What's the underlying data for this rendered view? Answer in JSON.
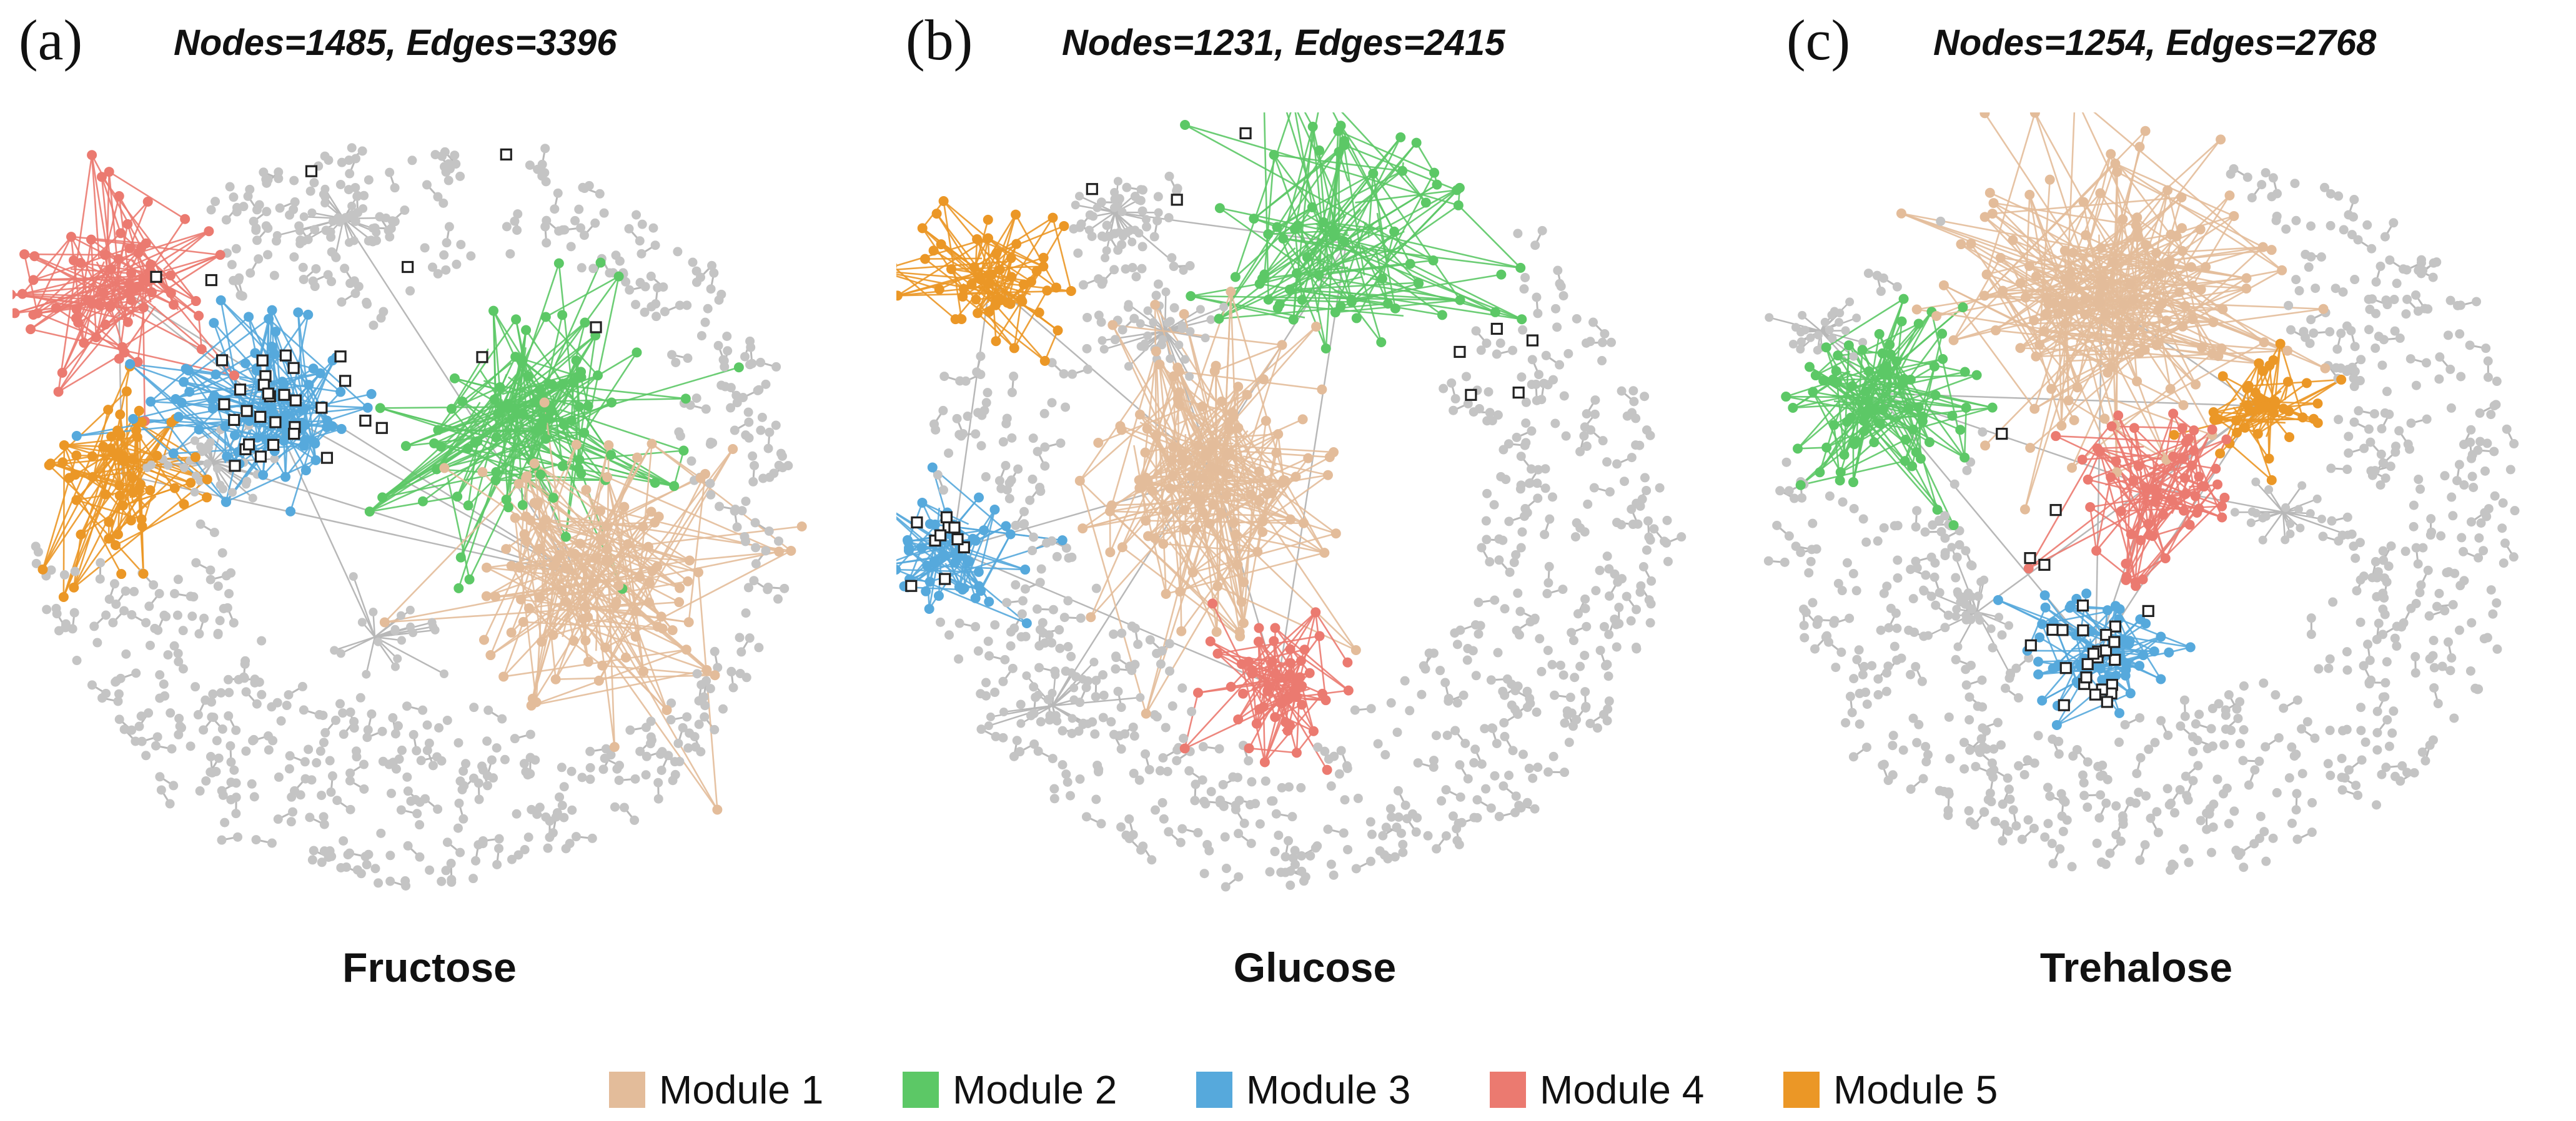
{
  "panels": [
    {
      "letter": "(a)",
      "stats": "Nodes=1485, Edges=3396",
      "title": "Fructose",
      "modules": [
        1,
        2,
        3,
        4,
        5
      ],
      "markers": 40
    },
    {
      "letter": "(b)",
      "stats": "Nodes=1231, Edges=2415",
      "title": "Glucose",
      "modules": [
        1,
        2,
        3,
        4,
        5
      ],
      "markers": 22
    },
    {
      "letter": "(c)",
      "stats": "Nodes=1254, Edges=2768",
      "title": "Trehalose",
      "modules": [
        1,
        2,
        3,
        4,
        5
      ],
      "markers": 28
    }
  ],
  "legend": [
    {
      "label": "Module 1",
      "color": "#e3bc9a"
    },
    {
      "label": "Module 2",
      "color": "#5cc866"
    },
    {
      "label": "Module 3",
      "color": "#56a9dc"
    },
    {
      "label": "Module 4",
      "color": "#eb7a70"
    },
    {
      "label": "Module 5",
      "color": "#eb9726"
    }
  ],
  "colors": {
    "background_node": "#c4c4c4",
    "edge": "#b8b8b8",
    "marker_stroke": "#222222"
  }
}
